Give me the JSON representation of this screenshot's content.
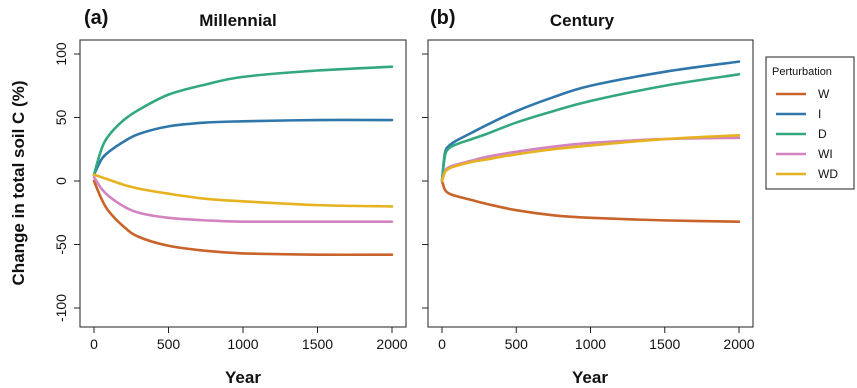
{
  "colors": {
    "W": "#c8632a",
    "I": "#2f77ab",
    "D": "#33a87f",
    "WI": "#d283c0",
    "WD": "#e6b21f"
  },
  "legend": {
    "title": "Perturbation",
    "entries": [
      "W",
      "I",
      "D",
      "WI",
      "WD"
    ]
  },
  "y_axis_title": "Change in total soil C (%)",
  "chart_data": [
    {
      "type": "line",
      "panel_label": "(a)",
      "title": "Millennial",
      "xlabel": "Year",
      "ylabel": "Change in total soil C (%)",
      "xlim": [
        0,
        2000
      ],
      "ylim": [
        -100,
        100
      ],
      "xticks": [
        0,
        500,
        1000,
        1500,
        2000
      ],
      "yticks": [
        -100,
        -50,
        0,
        50,
        100
      ],
      "grid": false,
      "x": [
        0,
        50,
        100,
        200,
        300,
        500,
        750,
        1000,
        1500,
        2000
      ],
      "series": [
        {
          "name": "W",
          "values": [
            0,
            -14,
            -24,
            -36,
            -44,
            -51,
            -55,
            -57,
            -58,
            -58
          ]
        },
        {
          "name": "I",
          "values": [
            5,
            17,
            23,
            31,
            37,
            43,
            46,
            47,
            48,
            48
          ]
        },
        {
          "name": "D",
          "values": [
            5,
            25,
            36,
            48,
            56,
            68,
            76,
            82,
            87,
            90
          ]
        },
        {
          "name": "WI",
          "values": [
            3,
            -6,
            -12,
            -20,
            -25,
            -29,
            -31,
            -32,
            -32,
            -32
          ]
        },
        {
          "name": "WD",
          "values": [
            5,
            3,
            1,
            -3,
            -6,
            -10,
            -14,
            -16,
            -19,
            -20
          ]
        }
      ]
    },
    {
      "type": "line",
      "panel_label": "(b)",
      "title": "Century",
      "xlabel": "Year",
      "ylabel": "",
      "xlim": [
        0,
        2000
      ],
      "ylim": [
        -100,
        100
      ],
      "xticks": [
        0,
        500,
        1000,
        1500,
        2000
      ],
      "yticks": [
        -100,
        -50,
        0,
        50,
        100
      ],
      "grid": false,
      "x": [
        0,
        20,
        50,
        100,
        200,
        300,
        500,
        750,
        1000,
        1500,
        2000
      ],
      "series": [
        {
          "name": "W",
          "values": [
            0,
            -7,
            -10,
            -12,
            -15,
            -18,
            -23,
            -27,
            -29,
            -31,
            -32
          ]
        },
        {
          "name": "I",
          "values": [
            0,
            22,
            28,
            32,
            38,
            44,
            55,
            66,
            75,
            86,
            94
          ]
        },
        {
          "name": "D",
          "values": [
            0,
            20,
            26,
            29,
            33,
            37,
            46,
            55,
            63,
            75,
            84
          ]
        },
        {
          "name": "WI",
          "values": [
            0,
            8,
            11,
            13,
            16,
            19,
            23,
            27,
            30,
            33,
            34
          ]
        },
        {
          "name": "WD",
          "values": [
            0,
            7,
            10,
            12,
            15,
            17,
            21,
            25,
            28,
            33,
            36
          ]
        }
      ]
    }
  ]
}
